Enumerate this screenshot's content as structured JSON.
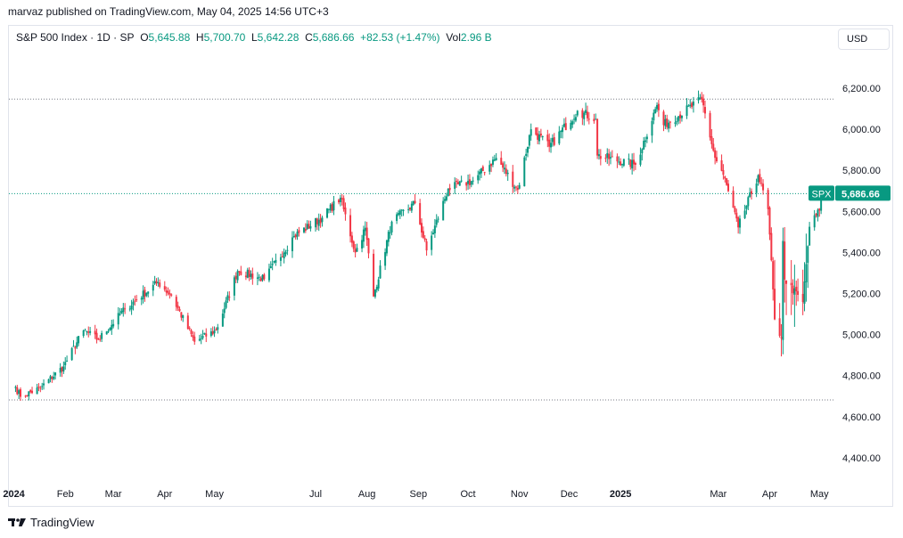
{
  "publish_line": "marvaz published on TradingView.com, May 04, 2025 14:56 UTC+3",
  "legend": {
    "symbol": "S&P 500 Index · 1D · SP",
    "open_label": "O",
    "open_value": "5,645.88",
    "high_label": "H",
    "high_value": "5,700.70",
    "low_label": "L",
    "low_value": "5,642.28",
    "close_label": "C",
    "close_value": "5,686.66",
    "change_value": "+82.53 (+1.47%)",
    "volume_label": "Vol",
    "volume_value": "2.96 B"
  },
  "currency_button": "USD",
  "footer": {
    "brand": "TradingView",
    "brand_icon": "tradingview-logo-icon"
  },
  "colors": {
    "up": "#089981",
    "down": "#f23645",
    "grid_dotted": "#787b86",
    "last_price_line": "#089981",
    "axis_text": "#131722"
  },
  "chart_data": {
    "type": "candlestick",
    "symbol": "SPX",
    "last_price_label": "SPX",
    "last_price": 5686.66,
    "last_price_text": "5,686.66",
    "ylim": [
      4400,
      6300
    ],
    "y_ticks": [
      4400,
      4600,
      4800,
      5000,
      5200,
      5400,
      5600,
      5800,
      6000,
      6200
    ],
    "y_tick_labels": [
      "4,400.00",
      "4,600.00",
      "4,800.00",
      "5,000.00",
      "5,200.00",
      "5,400.00",
      "5,600.00",
      "5,800.00",
      "6,000.00",
      "6,200.00"
    ],
    "x_range": [
      "2023-12-29",
      "2025-05-10"
    ],
    "x_ticks": [
      {
        "date": "2024-01-01",
        "label": "2024",
        "bold": true
      },
      {
        "date": "2024-02-01",
        "label": "Feb"
      },
      {
        "date": "2024-03-01",
        "label": "Mar"
      },
      {
        "date": "2024-04-01",
        "label": "Apr"
      },
      {
        "date": "2024-05-01",
        "label": "May"
      },
      {
        "date": "2024-07-01",
        "label": "Jul"
      },
      {
        "date": "2024-08-01",
        "label": "Aug"
      },
      {
        "date": "2024-09-01",
        "label": "Sep"
      },
      {
        "date": "2024-10-01",
        "label": "Oct"
      },
      {
        "date": "2024-11-01",
        "label": "Nov"
      },
      {
        "date": "2024-12-01",
        "label": "Dec"
      },
      {
        "date": "2025-01-01",
        "label": "2025",
        "bold": true
      },
      {
        "date": "2025-03-01",
        "label": "Mar"
      },
      {
        "date": "2025-04-01",
        "label": "Apr"
      },
      {
        "date": "2025-05-01",
        "label": "May"
      }
    ],
    "horizontal_levels": [
      6147,
      4682
    ],
    "anchors": [
      [
        "2024-01-02",
        4745
      ],
      [
        "2024-01-05",
        4697
      ],
      [
        "2024-01-17",
        4740
      ],
      [
        "2024-01-31",
        4845
      ],
      [
        "2024-02-12",
        5020
      ],
      [
        "2024-02-21",
        4975
      ],
      [
        "2024-03-08",
        5125
      ],
      [
        "2024-03-28",
        5255
      ],
      [
        "2024-04-05",
        5190
      ],
      [
        "2024-04-19",
        4965
      ],
      [
        "2024-05-02",
        5020
      ],
      [
        "2024-05-15",
        5310
      ],
      [
        "2024-05-31",
        5270
      ],
      [
        "2024-06-18",
        5480
      ],
      [
        "2024-07-05",
        5570
      ],
      [
        "2024-07-16",
        5667
      ],
      [
        "2024-07-25",
        5400
      ],
      [
        "2024-07-31",
        5520
      ],
      [
        "2024-08-05",
        5186
      ],
      [
        "2024-08-16",
        5550
      ],
      [
        "2024-08-30",
        5640
      ],
      [
        "2024-09-06",
        5410
      ],
      [
        "2024-09-19",
        5710
      ],
      [
        "2024-10-04",
        5750
      ],
      [
        "2024-10-18",
        5860
      ],
      [
        "2024-10-31",
        5705
      ],
      [
        "2024-11-08",
        6000
      ],
      [
        "2024-11-19",
        5915
      ],
      [
        "2024-12-06",
        6090
      ],
      [
        "2024-12-17",
        6050
      ],
      [
        "2024-12-18",
        5872
      ],
      [
        "2025-01-10",
        5827
      ],
      [
        "2025-01-23",
        6118
      ],
      [
        "2025-01-27",
        6020
      ],
      [
        "2025-02-19",
        6144
      ],
      [
        "2025-02-27",
        5861
      ],
      [
        "2025-03-04",
        5778
      ],
      [
        "2025-03-13",
        5522
      ],
      [
        "2025-03-25",
        5776
      ],
      [
        "2025-03-31",
        5611
      ],
      [
        "2025-04-04",
        5074
      ],
      [
        "2025-04-08",
        4982
      ],
      [
        "2025-04-09",
        5456
      ],
      [
        "2025-04-10",
        5268
      ],
      [
        "2025-04-21",
        5158
      ],
      [
        "2025-04-25",
        5525
      ],
      [
        "2025-05-01",
        5604
      ],
      [
        "2025-05-02",
        5686.66
      ]
    ]
  }
}
